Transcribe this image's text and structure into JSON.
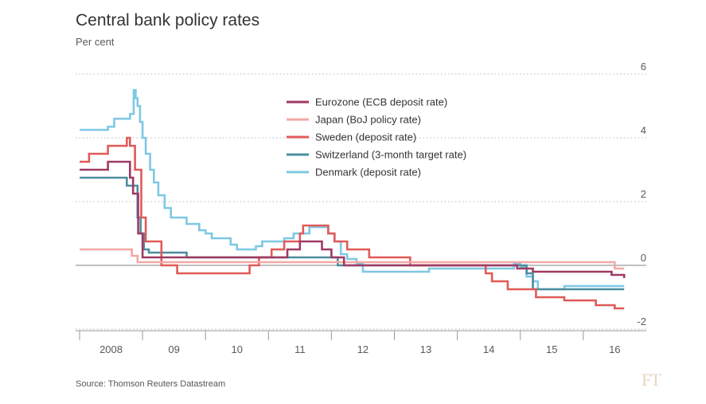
{
  "chart_data": {
    "type": "line",
    "title": "Central bank policy rates",
    "subtitle": "Per cent",
    "ylim": [
      -2,
      6
    ],
    "y_ticks": [
      6,
      4,
      2,
      0,
      -2
    ],
    "xlim": [
      2007.5,
      2016.35
    ],
    "x_ticks": [
      {
        "label": "2008",
        "at": 2008.0
      },
      {
        "label": "09",
        "at": 2009.0
      },
      {
        "label": "10",
        "at": 2010.0
      },
      {
        "label": "11",
        "at": 2011.0
      },
      {
        "label": "12",
        "at": 2012.0
      },
      {
        "label": "13",
        "at": 2013.0
      },
      {
        "label": "14",
        "at": 2014.0
      },
      {
        "label": "15",
        "at": 2015.0
      },
      {
        "label": "16",
        "at": 2016.0
      }
    ],
    "x_boundaries": [
      2007.5,
      2008.5,
      2009.5,
      2010.5,
      2011.5,
      2012.5,
      2013.5,
      2014.5,
      2015.5
    ],
    "grid": "horizontal dotted",
    "legend_position": "top-right",
    "series": [
      {
        "name": "Denmark (deposit rate)",
        "color": "#7ec8e3",
        "points": [
          [
            2007.5,
            4.25
          ],
          [
            2007.95,
            4.25
          ],
          [
            2007.95,
            4.35
          ],
          [
            2008.05,
            4.35
          ],
          [
            2008.05,
            4.6
          ],
          [
            2008.3,
            4.6
          ],
          [
            2008.3,
            4.75
          ],
          [
            2008.36,
            4.75
          ],
          [
            2008.36,
            5.5
          ],
          [
            2008.39,
            5.5
          ],
          [
            2008.39,
            5.25
          ],
          [
            2008.42,
            5.25
          ],
          [
            2008.42,
            5.0
          ],
          [
            2008.46,
            5.0
          ],
          [
            2008.46,
            4.5
          ],
          [
            2008.5,
            4.5
          ],
          [
            2008.5,
            4.0
          ],
          [
            2008.55,
            4.0
          ],
          [
            2008.55,
            3.5
          ],
          [
            2008.62,
            3.5
          ],
          [
            2008.62,
            3.0
          ],
          [
            2008.68,
            3.0
          ],
          [
            2008.68,
            2.6
          ],
          [
            2008.75,
            2.6
          ],
          [
            2008.75,
            2.2
          ],
          [
            2008.85,
            2.2
          ],
          [
            2008.85,
            1.8
          ],
          [
            2008.95,
            1.8
          ],
          [
            2008.95,
            1.5
          ],
          [
            2009.2,
            1.5
          ],
          [
            2009.2,
            1.3
          ],
          [
            2009.4,
            1.3
          ],
          [
            2009.4,
            1.1
          ],
          [
            2009.5,
            1.1
          ],
          [
            2009.5,
            1.0
          ],
          [
            2009.6,
            1.0
          ],
          [
            2009.6,
            0.85
          ],
          [
            2009.9,
            0.85
          ],
          [
            2009.9,
            0.65
          ],
          [
            2010.0,
            0.65
          ],
          [
            2010.0,
            0.5
          ],
          [
            2010.3,
            0.5
          ],
          [
            2010.3,
            0.6
          ],
          [
            2010.4,
            0.6
          ],
          [
            2010.4,
            0.75
          ],
          [
            2010.75,
            0.75
          ],
          [
            2010.75,
            0.85
          ],
          [
            2010.9,
            0.85
          ],
          [
            2010.9,
            1.0
          ],
          [
            2011.15,
            1.0
          ],
          [
            2011.15,
            1.2
          ],
          [
            2011.45,
            1.2
          ],
          [
            2011.45,
            1.0
          ],
          [
            2011.55,
            1.0
          ],
          [
            2011.55,
            0.75
          ],
          [
            2011.65,
            0.75
          ],
          [
            2011.65,
            0.35
          ],
          [
            2011.75,
            0.35
          ],
          [
            2011.75,
            0.2
          ],
          [
            2011.9,
            0.2
          ],
          [
            2011.9,
            0.05
          ],
          [
            2012.0,
            0.05
          ],
          [
            2012.0,
            -0.2
          ],
          [
            2013.05,
            -0.2
          ],
          [
            2013.05,
            -0.1
          ],
          [
            2014.4,
            -0.1
          ],
          [
            2014.4,
            0.05
          ],
          [
            2014.5,
            0.05
          ],
          [
            2014.5,
            -0.05
          ],
          [
            2014.6,
            -0.05
          ],
          [
            2014.6,
            -0.35
          ],
          [
            2014.7,
            -0.35
          ],
          [
            2014.7,
            -0.5
          ],
          [
            2014.78,
            -0.5
          ],
          [
            2014.78,
            -0.75
          ],
          [
            2015.2,
            -0.75
          ],
          [
            2015.2,
            -0.65
          ],
          [
            2016.15,
            -0.65
          ]
        ]
      },
      {
        "name": "Switzerland (3-month target rate)",
        "color": "#4d8ea0",
        "points": [
          [
            2007.5,
            2.75
          ],
          [
            2008.25,
            2.75
          ],
          [
            2008.25,
            2.5
          ],
          [
            2008.42,
            2.5
          ],
          [
            2008.42,
            1.5
          ],
          [
            2008.47,
            1.5
          ],
          [
            2008.47,
            1.0
          ],
          [
            2008.52,
            1.0
          ],
          [
            2008.52,
            0.5
          ],
          [
            2008.6,
            0.5
          ],
          [
            2008.6,
            0.4
          ],
          [
            2009.2,
            0.4
          ],
          [
            2009.2,
            0.25
          ],
          [
            2011.6,
            0.25
          ],
          [
            2011.6,
            0.0
          ],
          [
            2014.6,
            0.0
          ],
          [
            2014.6,
            -0.25
          ],
          [
            2014.7,
            -0.25
          ],
          [
            2014.7,
            -0.75
          ],
          [
            2016.15,
            -0.75
          ]
        ]
      },
      {
        "name": "Sweden (deposit rate)",
        "color": "#e05a58",
        "points": [
          [
            2007.5,
            3.25
          ],
          [
            2007.65,
            3.25
          ],
          [
            2007.65,
            3.5
          ],
          [
            2007.95,
            3.5
          ],
          [
            2007.95,
            3.75
          ],
          [
            2008.25,
            3.75
          ],
          [
            2008.25,
            4.0
          ],
          [
            2008.3,
            4.0
          ],
          [
            2008.3,
            3.75
          ],
          [
            2008.38,
            3.75
          ],
          [
            2008.38,
            3.0
          ],
          [
            2008.48,
            3.0
          ],
          [
            2008.48,
            1.5
          ],
          [
            2008.55,
            1.5
          ],
          [
            2008.55,
            0.75
          ],
          [
            2008.8,
            0.75
          ],
          [
            2008.8,
            0.0
          ],
          [
            2009.05,
            0.0
          ],
          [
            2009.05,
            -0.25
          ],
          [
            2010.2,
            -0.25
          ],
          [
            2010.2,
            0.0
          ],
          [
            2010.35,
            0.0
          ],
          [
            2010.35,
            0.25
          ],
          [
            2010.55,
            0.25
          ],
          [
            2010.55,
            0.5
          ],
          [
            2010.75,
            0.5
          ],
          [
            2010.75,
            0.75
          ],
          [
            2011.0,
            0.75
          ],
          [
            2011.0,
            1.0
          ],
          [
            2011.05,
            1.0
          ],
          [
            2011.05,
            1.25
          ],
          [
            2011.45,
            1.25
          ],
          [
            2011.45,
            1.0
          ],
          [
            2011.55,
            1.0
          ],
          [
            2011.55,
            0.75
          ],
          [
            2011.75,
            0.75
          ],
          [
            2011.75,
            0.5
          ],
          [
            2012.1,
            0.5
          ],
          [
            2012.1,
            0.25
          ],
          [
            2012.75,
            0.25
          ],
          [
            2012.75,
            0.0
          ],
          [
            2013.95,
            0.0
          ],
          [
            2013.95,
            -0.25
          ],
          [
            2014.05,
            -0.25
          ],
          [
            2014.05,
            -0.5
          ],
          [
            2014.3,
            -0.5
          ],
          [
            2014.3,
            -0.75
          ],
          [
            2014.75,
            -0.75
          ],
          [
            2014.75,
            -1.0
          ],
          [
            2015.2,
            -1.0
          ],
          [
            2015.2,
            -1.1
          ],
          [
            2015.7,
            -1.1
          ],
          [
            2015.7,
            -1.25
          ],
          [
            2016.0,
            -1.25
          ],
          [
            2016.0,
            -1.35
          ],
          [
            2016.15,
            -1.35
          ]
        ]
      },
      {
        "name": "Japan (BoJ policy rate)",
        "color": "#f3a8a5",
        "points": [
          [
            2007.5,
            0.5
          ],
          [
            2008.33,
            0.5
          ],
          [
            2008.33,
            0.3
          ],
          [
            2008.42,
            0.3
          ],
          [
            2008.42,
            0.1
          ],
          [
            2016.0,
            0.1
          ],
          [
            2016.0,
            -0.1
          ],
          [
            2016.15,
            -0.1
          ]
        ]
      },
      {
        "name": "Eurozone (ECB deposit rate)",
        "color": "#a03a63",
        "points": [
          [
            2007.5,
            3.0
          ],
          [
            2007.95,
            3.0
          ],
          [
            2007.95,
            3.25
          ],
          [
            2008.3,
            3.25
          ],
          [
            2008.3,
            2.75
          ],
          [
            2008.35,
            2.75
          ],
          [
            2008.35,
            2.25
          ],
          [
            2008.43,
            2.25
          ],
          [
            2008.43,
            1.0
          ],
          [
            2008.5,
            1.0
          ],
          [
            2008.5,
            0.25
          ],
          [
            2010.8,
            0.25
          ],
          [
            2010.8,
            0.5
          ],
          [
            2011.0,
            0.5
          ],
          [
            2011.0,
            0.75
          ],
          [
            2011.35,
            0.75
          ],
          [
            2011.35,
            0.5
          ],
          [
            2011.5,
            0.5
          ],
          [
            2011.5,
            0.25
          ],
          [
            2011.7,
            0.25
          ],
          [
            2011.7,
            0.0
          ],
          [
            2014.45,
            0.0
          ],
          [
            2014.45,
            -0.1
          ],
          [
            2014.7,
            -0.1
          ],
          [
            2014.7,
            -0.2
          ],
          [
            2015.95,
            -0.2
          ],
          [
            2015.95,
            -0.3
          ],
          [
            2016.15,
            -0.3
          ],
          [
            2016.15,
            -0.4
          ]
        ]
      }
    ],
    "legend": [
      {
        "name": "Eurozone (ECB deposit rate)",
        "color": "#a03a63"
      },
      {
        "name": "Japan (BoJ policy rate)",
        "color": "#f3a8a5"
      },
      {
        "name": "Sweden (deposit rate)",
        "color": "#e05a58"
      },
      {
        "name": "Switzerland (3-month target rate)",
        "color": "#4d8ea0"
      },
      {
        "name": "Denmark (deposit rate)",
        "color": "#7ec8e3"
      }
    ],
    "source": "Source: Thomson Reuters Datastream"
  },
  "branding": {
    "logo_text": "FT"
  }
}
